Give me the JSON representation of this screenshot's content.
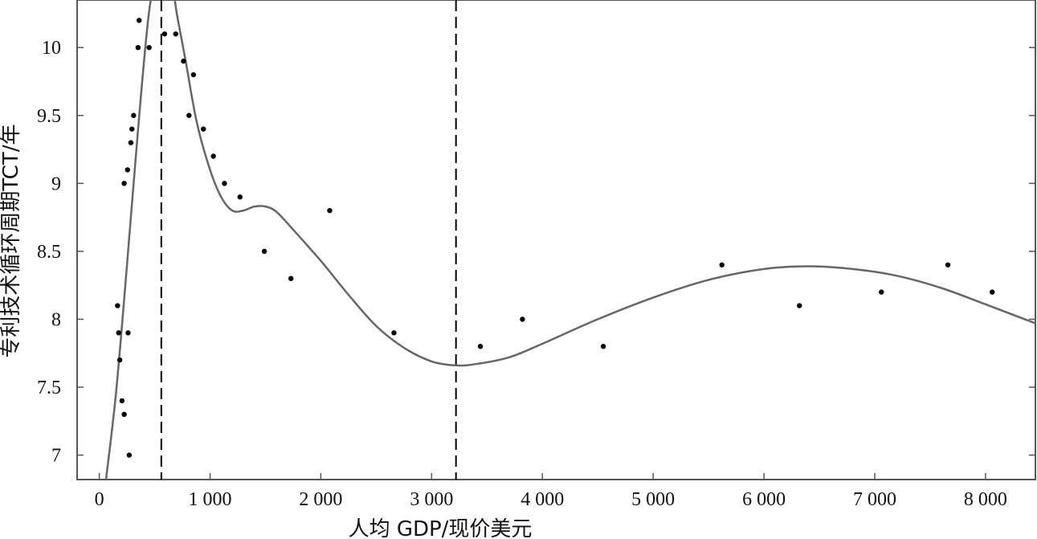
{
  "chart_data": {
    "type": "scatter",
    "xlabel": "人均 GDP/现价美元",
    "ylabel": "专利技术循环周期TCT/年",
    "xlim": [
      -200,
      8450
    ],
    "ylim": [
      6.82,
      10.35
    ],
    "xticks": [
      0,
      1000,
      2000,
      3000,
      4000,
      5000,
      6000,
      7000,
      8000
    ],
    "xtick_labels": [
      "0",
      "1 000",
      "2 000",
      "3 000",
      "4 000",
      "5 000",
      "6 000",
      "7 000",
      "8 000"
    ],
    "yticks": [
      7,
      7.5,
      8,
      8.5,
      9,
      9.5,
      10
    ],
    "ytick_labels": [
      "7",
      "7.5",
      "8",
      "8.5",
      "9",
      "9.5",
      "10"
    ],
    "grid": false,
    "vlines": [
      560,
      3220
    ],
    "points": [
      {
        "x": 165,
        "y": 8.1
      },
      {
        "x": 175,
        "y": 7.9
      },
      {
        "x": 185,
        "y": 7.7
      },
      {
        "x": 205,
        "y": 7.4
      },
      {
        "x": 225,
        "y": 7.3
      },
      {
        "x": 225,
        "y": 9.0
      },
      {
        "x": 255,
        "y": 9.1
      },
      {
        "x": 260,
        "y": 7.9
      },
      {
        "x": 270,
        "y": 7.0
      },
      {
        "x": 285,
        "y": 9.3
      },
      {
        "x": 295,
        "y": 9.4
      },
      {
        "x": 310,
        "y": 9.5
      },
      {
        "x": 350,
        "y": 10.0
      },
      {
        "x": 360,
        "y": 10.2
      },
      {
        "x": 450,
        "y": 10.0
      },
      {
        "x": 590,
        "y": 10.1
      },
      {
        "x": 690,
        "y": 10.1
      },
      {
        "x": 760,
        "y": 9.9
      },
      {
        "x": 810,
        "y": 9.5
      },
      {
        "x": 850,
        "y": 9.8
      },
      {
        "x": 940,
        "y": 9.4
      },
      {
        "x": 1030,
        "y": 9.2
      },
      {
        "x": 1130,
        "y": 9.0
      },
      {
        "x": 1270,
        "y": 8.9
      },
      {
        "x": 1490,
        "y": 8.5
      },
      {
        "x": 1730,
        "y": 8.3
      },
      {
        "x": 2080,
        "y": 8.8
      },
      {
        "x": 2660,
        "y": 7.9
      },
      {
        "x": 3440,
        "y": 7.8
      },
      {
        "x": 3820,
        "y": 8.0
      },
      {
        "x": 4550,
        "y": 7.8
      },
      {
        "x": 5620,
        "y": 8.4
      },
      {
        "x": 6320,
        "y": 8.1
      },
      {
        "x": 7060,
        "y": 8.2
      },
      {
        "x": 7660,
        "y": 8.4
      },
      {
        "x": 8060,
        "y": 8.2
      }
    ],
    "fit_curve": [
      {
        "x": 50,
        "y": 6.75
      },
      {
        "x": 150,
        "y": 7.45
      },
      {
        "x": 250,
        "y": 8.4
      },
      {
        "x": 350,
        "y": 9.4
      },
      {
        "x": 440,
        "y": 10.2
      },
      {
        "x": 490,
        "y": 10.45
      },
      {
        "x": 520,
        "y": 10.55
      },
      {
        "x": 640,
        "y": 10.55
      },
      {
        "x": 700,
        "y": 10.25
      },
      {
        "x": 780,
        "y": 9.9
      },
      {
        "x": 880,
        "y": 9.45
      },
      {
        "x": 1000,
        "y": 9.1
      },
      {
        "x": 1100,
        "y": 8.9
      },
      {
        "x": 1200,
        "y": 8.8
      },
      {
        "x": 1300,
        "y": 8.8
      },
      {
        "x": 1400,
        "y": 8.83
      },
      {
        "x": 1500,
        "y": 8.83
      },
      {
        "x": 1600,
        "y": 8.79
      },
      {
        "x": 1750,
        "y": 8.66
      },
      {
        "x": 2000,
        "y": 8.43
      },
      {
        "x": 2250,
        "y": 8.18
      },
      {
        "x": 2500,
        "y": 7.95
      },
      {
        "x": 2750,
        "y": 7.79
      },
      {
        "x": 3000,
        "y": 7.69
      },
      {
        "x": 3220,
        "y": 7.66
      },
      {
        "x": 3400,
        "y": 7.67
      },
      {
        "x": 3700,
        "y": 7.72
      },
      {
        "x": 4000,
        "y": 7.82
      },
      {
        "x": 4500,
        "y": 8.0
      },
      {
        "x": 5000,
        "y": 8.16
      },
      {
        "x": 5500,
        "y": 8.29
      },
      {
        "x": 6000,
        "y": 8.37
      },
      {
        "x": 6400,
        "y": 8.39
      },
      {
        "x": 6800,
        "y": 8.37
      },
      {
        "x": 7200,
        "y": 8.32
      },
      {
        "x": 7600,
        "y": 8.23
      },
      {
        "x": 8000,
        "y": 8.11
      },
      {
        "x": 8450,
        "y": 7.97
      }
    ],
    "colors": {
      "points": "#000000",
      "curve": "#666666",
      "vline": "#000000",
      "frame": "#555555"
    }
  }
}
